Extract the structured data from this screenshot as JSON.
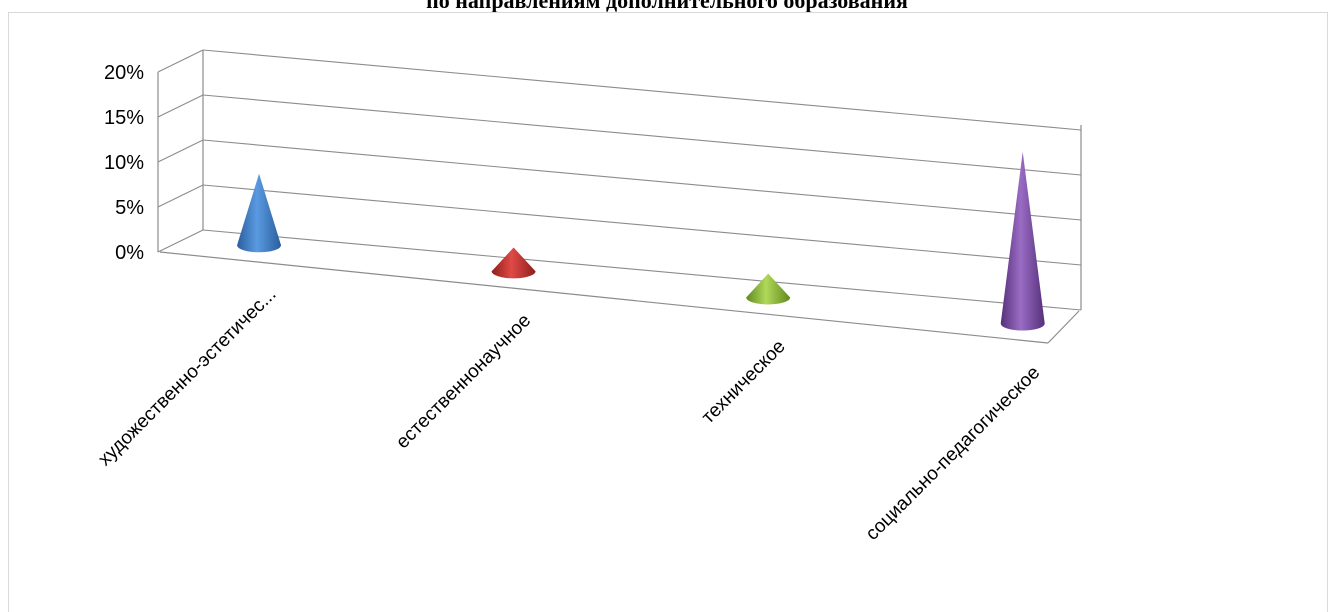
{
  "chart_data": {
    "type": "bar",
    "title": "по направлениям дополнительного образования",
    "categories": [
      "художественно-эстетичес...",
      "естественнонаучное",
      "техническое",
      "социально-педагогическое"
    ],
    "values": [
      7.5,
      2.5,
      2.5,
      18
    ],
    "ylim": [
      0,
      20
    ],
    "yticks": [
      "0%",
      "5%",
      "10%",
      "15%",
      "20%"
    ],
    "colors": [
      "#3f7fcb",
      "#c0302d",
      "#8fb83a",
      "#7a4fa0"
    ],
    "grid": true,
    "legend": "none"
  }
}
